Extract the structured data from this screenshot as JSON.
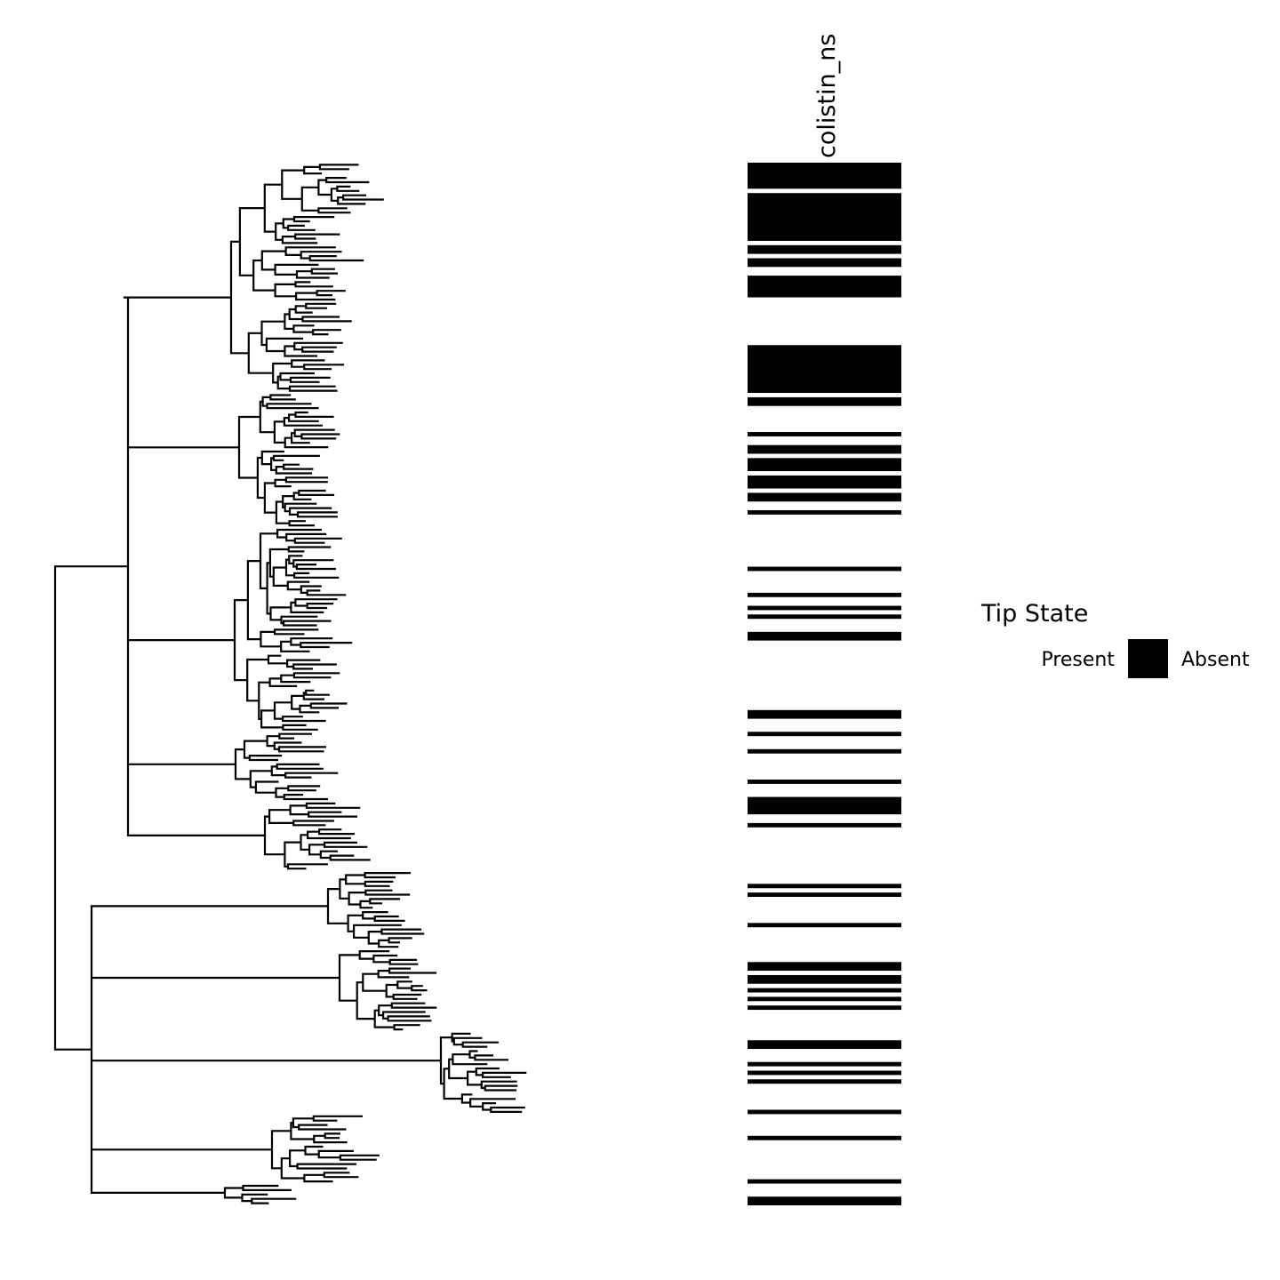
{
  "chart_data": {
    "type": "heatmap",
    "column_label": "colistin_ns",
    "legend": {
      "title": "Tip State",
      "labels": [
        "Present",
        "Absent"
      ],
      "swatch_color": "#000000",
      "placement": "right"
    },
    "colors": {
      "present": "#000000",
      "background": "#ffffff"
    },
    "tip_count": 240,
    "present_runs": [
      [
        0,
        5
      ],
      [
        7,
        17
      ],
      [
        19,
        20
      ],
      [
        22,
        23
      ],
      [
        26,
        30
      ],
      [
        42,
        52
      ],
      [
        54,
        55
      ],
      [
        62,
        62
      ],
      [
        65,
        66
      ],
      [
        68,
        70
      ],
      [
        72,
        74
      ],
      [
        76,
        77
      ],
      [
        80,
        80
      ],
      [
        93,
        93
      ],
      [
        99,
        99
      ],
      [
        102,
        102
      ],
      [
        104,
        104
      ],
      [
        108,
        109
      ],
      [
        126,
        127
      ],
      [
        131,
        131
      ],
      [
        135,
        135
      ],
      [
        142,
        142
      ],
      [
        146,
        149
      ],
      [
        152,
        152
      ],
      [
        166,
        166
      ],
      [
        168,
        168
      ],
      [
        175,
        175
      ],
      [
        184,
        185
      ],
      [
        187,
        188
      ],
      [
        190,
        190
      ],
      [
        192,
        192
      ],
      [
        194,
        194
      ],
      [
        202,
        203
      ],
      [
        207,
        207
      ],
      [
        209,
        209
      ],
      [
        211,
        211
      ],
      [
        218,
        218
      ],
      [
        224,
        224
      ],
      [
        234,
        234
      ],
      [
        238,
        239
      ]
    ],
    "tree": {
      "layout": "rectangular",
      "clades": [
        {
          "lo": 0,
          "hi": 52,
          "b": 38,
          "r": 150
        },
        {
          "lo": 53,
          "hi": 83,
          "b": 40,
          "r": 88
        },
        {
          "lo": 84,
          "hi": 130,
          "b": 28,
          "r": 120
        },
        {
          "lo": 131,
          "hi": 146,
          "b": 22,
          "r": 105
        },
        {
          "lo": 147,
          "hi": 162,
          "b": 48,
          "r": 110
        },
        {
          "lo": 163,
          "hi": 180,
          "b": 112,
          "r": 95
        },
        {
          "lo": 181,
          "hi": 199,
          "b": 118,
          "r": 120
        },
        {
          "lo": 200,
          "hi": 218,
          "b": 225,
          "r": 80
        },
        {
          "lo": 219,
          "hi": 234,
          "b": 28,
          "r": 170
        },
        {
          "lo": 235,
          "hi": 239,
          "b": 28,
          "r": 70
        }
      ]
    }
  }
}
